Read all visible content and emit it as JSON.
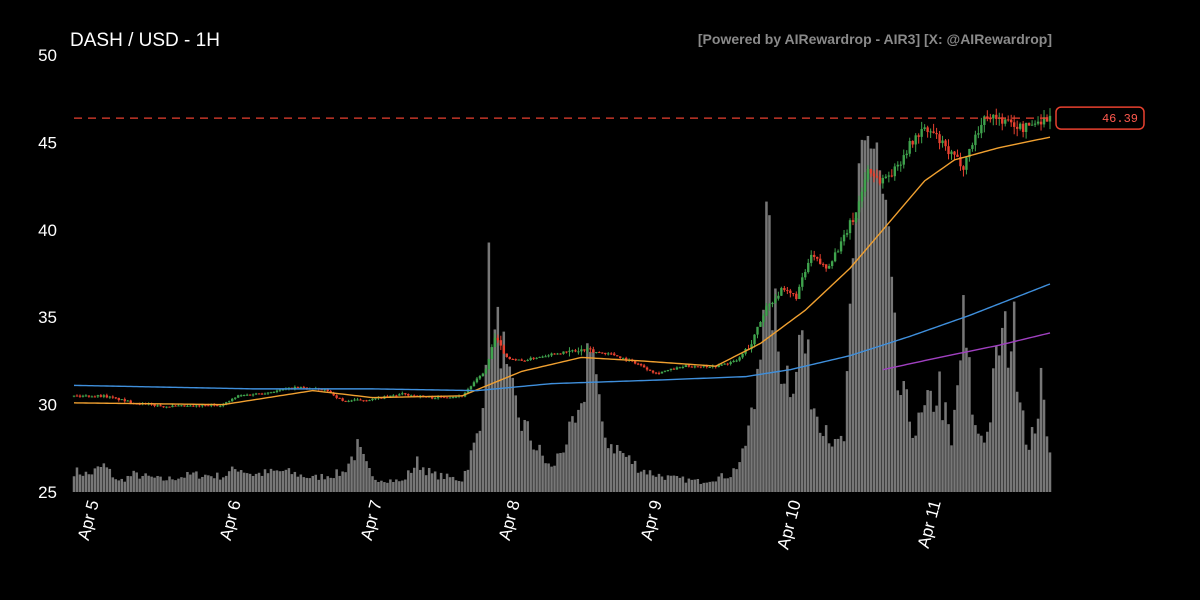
{
  "chart_data": {
    "type": "candlestick",
    "title": "DASH / USD - 1H",
    "watermark": "[Powered by AIRewardrop - AIR3] [X: @AIRewardrop]",
    "ylim": [
      25,
      50
    ],
    "yticks": [
      25,
      30,
      35,
      40,
      45,
      50
    ],
    "x_labels": [
      "Apr 5",
      "Apr 6",
      "Apr 7",
      "Apr 8",
      "Apr 9",
      "Apr 10",
      "Apr 11"
    ],
    "last_price": 46.39,
    "last_price_label": "46.39",
    "grid": false,
    "colors": {
      "up": "#3fa34d",
      "down": "#e8412f",
      "volume": "#8c8c8c",
      "ma_fast": "#f0a030",
      "ma_slow": "#3f8fdc",
      "ma_long": "#a040c0",
      "price_line": "#e8412f"
    },
    "anchors": {
      "close": [
        [
          0,
          30.5
        ],
        [
          10,
          30.5
        ],
        [
          20,
          30.1
        ],
        [
          30,
          29.9
        ],
        [
          40,
          29.9
        ],
        [
          50,
          30.0
        ],
        [
          55,
          30.5
        ],
        [
          65,
          30.7
        ],
        [
          75,
          31.0
        ],
        [
          85,
          30.8
        ],
        [
          90,
          30.2
        ],
        [
          100,
          30.3
        ],
        [
          110,
          30.6
        ],
        [
          120,
          30.4
        ],
        [
          130,
          30.5
        ],
        [
          138,
          32.0
        ],
        [
          141,
          33.8
        ],
        [
          145,
          32.7
        ],
        [
          150,
          32.5
        ],
        [
          160,
          32.9
        ],
        [
          170,
          33.1
        ],
        [
          180,
          32.9
        ],
        [
          188,
          32.4
        ],
        [
          195,
          31.8
        ],
        [
          205,
          32.2
        ],
        [
          215,
          32.2
        ],
        [
          222,
          32.5
        ],
        [
          227,
          33.5
        ],
        [
          232,
          35.6
        ],
        [
          237,
          36.5
        ],
        [
          242,
          36.2
        ],
        [
          247,
          38.5
        ],
        [
          252,
          37.8
        ],
        [
          257,
          39.2
        ],
        [
          262,
          41.0
        ],
        [
          266,
          43.5
        ],
        [
          270,
          42.8
        ],
        [
          275,
          43.4
        ],
        [
          279,
          44.6
        ],
        [
          284,
          45.7
        ],
        [
          288,
          45.5
        ],
        [
          293,
          44.4
        ],
        [
          298,
          43.7
        ],
        [
          302,
          45.4
        ],
        [
          306,
          46.6
        ],
        [
          312,
          46.2
        ],
        [
          318,
          45.8
        ],
        [
          324,
          46.3
        ],
        [
          327,
          46.39
        ]
      ],
      "ma_fast": [
        [
          0,
          30.1
        ],
        [
          50,
          30.0
        ],
        [
          80,
          30.8
        ],
        [
          100,
          30.4
        ],
        [
          130,
          30.5
        ],
        [
          140,
          31.2
        ],
        [
          150,
          31.9
        ],
        [
          170,
          32.7
        ],
        [
          190,
          32.5
        ],
        [
          215,
          32.2
        ],
        [
          230,
          33.5
        ],
        [
          245,
          35.4
        ],
        [
          260,
          37.8
        ],
        [
          270,
          39.8
        ],
        [
          285,
          42.8
        ],
        [
          295,
          44.0
        ],
        [
          310,
          44.7
        ],
        [
          327,
          45.3
        ]
      ],
      "ma_slow": [
        [
          0,
          31.1
        ],
        [
          60,
          30.9
        ],
        [
          100,
          30.9
        ],
        [
          135,
          30.8
        ],
        [
          160,
          31.2
        ],
        [
          195,
          31.4
        ],
        [
          225,
          31.6
        ],
        [
          240,
          32.0
        ],
        [
          260,
          32.8
        ],
        [
          280,
          33.9
        ],
        [
          300,
          35.1
        ],
        [
          315,
          36.1
        ],
        [
          327,
          36.9
        ]
      ],
      "ma_long": [
        [
          271,
          32.0
        ],
        [
          290,
          32.7
        ],
        [
          310,
          33.4
        ],
        [
          327,
          34.1
        ]
      ],
      "volume": [
        [
          0,
          26.2
        ],
        [
          5,
          26.0
        ],
        [
          10,
          26.5
        ],
        [
          15,
          25.6
        ],
        [
          20,
          26.0
        ],
        [
          30,
          25.7
        ],
        [
          40,
          26.0
        ],
        [
          50,
          25.9
        ],
        [
          55,
          26.4
        ],
        [
          60,
          26.0
        ],
        [
          70,
          26.2
        ],
        [
          80,
          25.8
        ],
        [
          90,
          26.1
        ],
        [
          95,
          27.5
        ],
        [
          100,
          25.8
        ],
        [
          110,
          25.6
        ],
        [
          115,
          26.7
        ],
        [
          120,
          26.0
        ],
        [
          130,
          25.7
        ],
        [
          136,
          28.5
        ],
        [
          139,
          36.8
        ],
        [
          141,
          33.5
        ],
        [
          143,
          34.2
        ],
        [
          145,
          31.2
        ],
        [
          150,
          29.0
        ],
        [
          155,
          27.5
        ],
        [
          160,
          26.3
        ],
        [
          165,
          28.0
        ],
        [
          170,
          29.2
        ],
        [
          173,
          34.8
        ],
        [
          177,
          28.3
        ],
        [
          185,
          27.0
        ],
        [
          190,
          26.3
        ],
        [
          195,
          26.0
        ],
        [
          200,
          25.8
        ],
        [
          210,
          25.6
        ],
        [
          220,
          26.0
        ],
        [
          224,
          27.0
        ],
        [
          228,
          30.0
        ],
        [
          232,
          39.4
        ],
        [
          236,
          33.0
        ],
        [
          240,
          31.5
        ],
        [
          244,
          34.0
        ],
        [
          248,
          30.0
        ],
        [
          252,
          29.0
        ],
        [
          255,
          27.5
        ],
        [
          258,
          28.0
        ],
        [
          262,
          39.5
        ],
        [
          264,
          46.8
        ],
        [
          268,
          44.0
        ],
        [
          272,
          40.0
        ],
        [
          276,
          31.0
        ],
        [
          282,
          28.5
        ],
        [
          290,
          31.0
        ],
        [
          294,
          27.5
        ],
        [
          298,
          34.5
        ],
        [
          302,
          28.5
        ],
        [
          306,
          28.3
        ],
        [
          310,
          33.5
        ],
        [
          315,
          34.0
        ],
        [
          320,
          27.2
        ],
        [
          324,
          30.8
        ],
        [
          327,
          27.8
        ]
      ]
    }
  }
}
